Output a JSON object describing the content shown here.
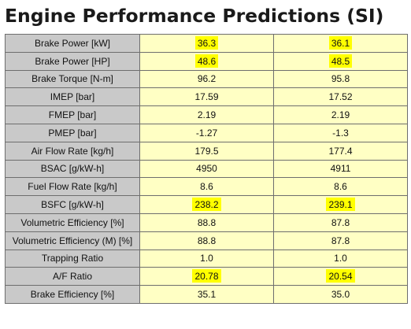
{
  "title": "Engine Performance Predictions (SI)",
  "colors": {
    "label_bg": "#c9c9c9",
    "value_bg": "#ffffc4",
    "highlight": "#ffff00",
    "border": "#6e6e6e"
  },
  "rows": [
    {
      "label": "Brake Power [kW]",
      "v1": "36.3",
      "v2": "36.1",
      "h1": true,
      "h2": true
    },
    {
      "label": "Brake Power [HP]",
      "v1": "48.6",
      "v2": "48.5",
      "h1": true,
      "h2": true
    },
    {
      "label": "Brake Torque [N-m]",
      "v1": "96.2",
      "v2": "95.8",
      "h1": false,
      "h2": false
    },
    {
      "label": "IMEP [bar]",
      "v1": "17.59",
      "v2": "17.52",
      "h1": false,
      "h2": false
    },
    {
      "label": "FMEP [bar]",
      "v1": "2.19",
      "v2": "2.19",
      "h1": false,
      "h2": false
    },
    {
      "label": "PMEP [bar]",
      "v1": "-1.27",
      "v2": "-1.3",
      "h1": false,
      "h2": false
    },
    {
      "label": "Air Flow Rate [kg/h]",
      "v1": "179.5",
      "v2": "177.4",
      "h1": false,
      "h2": false
    },
    {
      "label": "BSAC [g/kW-h]",
      "v1": "4950",
      "v2": "4911",
      "h1": false,
      "h2": false
    },
    {
      "label": "Fuel Flow Rate [kg/h]",
      "v1": "8.6",
      "v2": "8.6",
      "h1": false,
      "h2": false
    },
    {
      "label": "BSFC [g/kW-h]",
      "v1": "238.2",
      "v2": "239.1",
      "h1": true,
      "h2": true
    },
    {
      "label": "Volumetric Efficiency [%]",
      "v1": "88.8",
      "v2": "87.8",
      "h1": false,
      "h2": false
    },
    {
      "label": "Volumetric Efficiency (M) [%]",
      "v1": "88.8",
      "v2": "87.8",
      "h1": false,
      "h2": false
    },
    {
      "label": "Trapping Ratio",
      "v1": "1.0",
      "v2": "1.0",
      "h1": false,
      "h2": false
    },
    {
      "label": "A/F Ratio",
      "v1": "20.78",
      "v2": "20.54",
      "h1": true,
      "h2": true
    },
    {
      "label": "Brake Efficiency [%]",
      "v1": "35.1",
      "v2": "35.0",
      "h1": false,
      "h2": false
    }
  ]
}
